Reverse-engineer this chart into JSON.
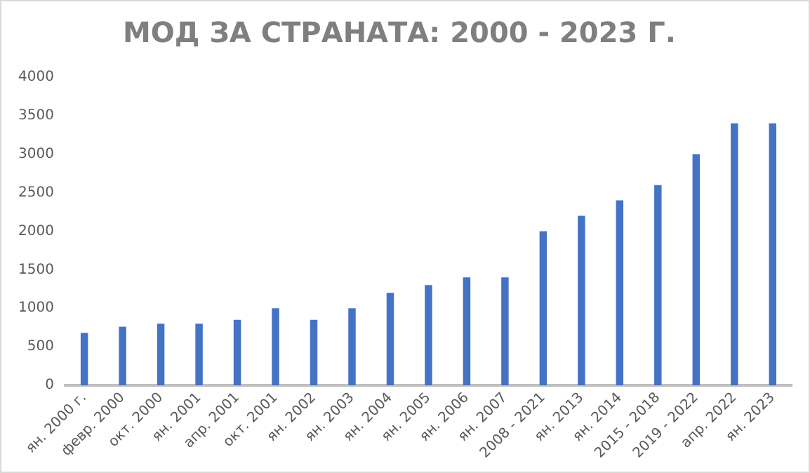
{
  "chart_data": {
    "type": "bar",
    "title": "МОД ЗА СТРАНАТА: 2000 - 2023 Г.",
    "categories": [
      "ян. 2000 г.",
      "февр. 2000",
      "окт. 2000",
      "ян. 2001",
      "апр. 2001",
      "окт. 2001",
      "ян. 2002",
      "ян. 2003",
      "ян. 2004",
      "ян. 2005",
      "ян. 2006",
      "ян. 2007",
      "2008 - 2021",
      "ян. 2013",
      "ян. 2014",
      "2015 - 2018",
      "2019 - 2022",
      "апр. 2022",
      "ян. 2023"
    ],
    "values": [
      680,
      760,
      800,
      800,
      850,
      1000,
      850,
      1000,
      1200,
      1300,
      1400,
      1400,
      2000,
      2200,
      2400,
      2600,
      3000,
      3400,
      3400
    ],
    "color": "#4472c4",
    "ylim": [
      0,
      4000
    ],
    "yticks": [
      0,
      500,
      1000,
      1500,
      2000,
      2500,
      3000,
      3500,
      4000
    ],
    "grid": false,
    "legend": false
  }
}
